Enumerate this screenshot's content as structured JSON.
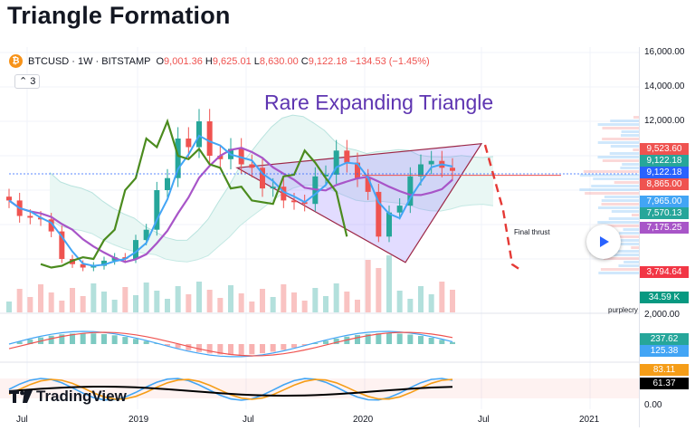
{
  "page_title": "Triangle Formation",
  "symbol": {
    "coin_glyph": "₿",
    "pair": "BTCUSD · 1W · BITSTAMP",
    "open_label": "O",
    "open": "9,001.36",
    "high_label": "H",
    "high": "9,625.01",
    "low_label": "L",
    "low": "8,630.00",
    "close_label": "C",
    "close": "9,122.18",
    "change": "−134.53 (−1.45%)"
  },
  "indicator_toggle": "3",
  "annotation": "Rare Expanding Triangle",
  "final_thrust": "Final thrust",
  "logo_text": "TradingView",
  "purple_label": "purplecry",
  "colors": {
    "up": "#26a69a",
    "down": "#ef5350",
    "purple": "#a855c8",
    "green_line": "#4b8b1e",
    "blue_line": "#42a5f5",
    "triangle": "#7b61ff",
    "orange": "#f59d18",
    "black": "#000000"
  },
  "price_axis": {
    "ticks": [
      {
        "label": "16,000.00",
        "value": 16000
      },
      {
        "label": "14,000.00",
        "value": 14000
      },
      {
        "label": "12,000.00",
        "value": 12000
      },
      {
        "label": "2,000.00",
        "value": 2000,
        "pane": "macd"
      },
      {
        "label": "0.00",
        "value": 0,
        "pane": "stoch"
      }
    ],
    "tags": [
      {
        "label": "9,523.60",
        "value": 9523.6,
        "color": "#ef5350"
      },
      {
        "label": "9,122.18",
        "value": 9122.18,
        "color": "#26a69a"
      },
      {
        "label": "9,122.18",
        "value": 9122.18,
        "color": "#2962ff"
      },
      {
        "label": "8,865.00",
        "value": 8865.0,
        "color": "#ef5350"
      },
      {
        "label": "7,965.00",
        "value": 7965.0,
        "color": "#42a5f5"
      },
      {
        "label": "7,570.13",
        "value": 7570.13,
        "color": "#26a69a"
      },
      {
        "label": "7,175.25",
        "value": 7175.25,
        "color": "#a855c8"
      },
      {
        "label": "3,794.64",
        "value": 3794.64,
        "color": "#f23645"
      },
      {
        "label": "34.59 K",
        "value": 34.59,
        "color": "#089981"
      },
      {
        "label": "237.62",
        "value": 237.62,
        "color": "#26a69a"
      },
      {
        "label": "125.38",
        "value": 125.38,
        "color": "#42a5f5"
      },
      {
        "label": "83.11",
        "value": 83.11,
        "color": "#f59d18"
      },
      {
        "label": "61.37",
        "value": 61.37,
        "color": "#000000"
      }
    ]
  },
  "time_axis": [
    "Jul",
    "2019",
    "Jul",
    "2020",
    "Jul",
    "2021"
  ],
  "chart_data": {
    "type": "candlestick",
    "title": "",
    "price_range_shown": [
      3000,
      16000
    ],
    "x_labels": [
      "Jul",
      "2019",
      "Jul",
      "2020",
      "Jul",
      "2021"
    ],
    "last_close": 9122.18,
    "series": [
      {
        "name": "BTCUSD weekly candles",
        "approx_closes": [
          7400,
          6500,
          6400,
          6300,
          5600,
          4000,
          3700,
          3500,
          3600,
          3900,
          4100,
          4000,
          5100,
          5700,
          8000,
          8700,
          11000,
          10500,
          12000,
          10000,
          9800,
          10400,
          9500,
          9300,
          8100,
          8200,
          7400,
          7300,
          7200,
          8800,
          8900,
          10300,
          9600,
          8700,
          7900,
          5300,
          6700,
          7100,
          8800,
          9500,
          9700,
          9300,
          9122
        ]
      },
      {
        "name": "Volume",
        "unit": "K",
        "last": 34.59
      },
      {
        "name": "MACD",
        "values_last": [
          237.62,
          125.38
        ]
      },
      {
        "name": "Stoch RSI / RSI",
        "values_last": [
          83.11,
          61.37
        ]
      }
    ],
    "annotations": [
      {
        "text": "Rare Expanding Triangle"
      },
      {
        "text": "Final thrust"
      }
    ],
    "price_levels": [
      9523.6,
      9122.18,
      8865.0,
      7965.0,
      7570.13,
      7175.25,
      3794.64
    ]
  }
}
